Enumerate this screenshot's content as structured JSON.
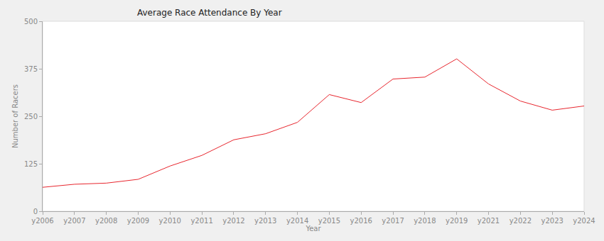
{
  "chart_data": {
    "type": "line",
    "title": "Average Race Attendance By Year",
    "x_label": "Year",
    "y_label": "Number of Racers",
    "categories": [
      "y2006",
      "y2007",
      "y2008",
      "y2009",
      "y2010",
      "y2011",
      "y2012",
      "y2013",
      "y2014",
      "y2015",
      "y2016",
      "y2017",
      "y2018",
      "y2019",
      "y2021",
      "y2022",
      "y2023",
      "y2024"
    ],
    "values": [
      63,
      71,
      74,
      84,
      119,
      147,
      188,
      204,
      234,
      307,
      286,
      348,
      353,
      401,
      335,
      290,
      266,
      277
    ],
    "color": "#e8262e",
    "ylim": [
      0,
      500
    ],
    "yticks": [
      0,
      125,
      250,
      375,
      500
    ],
    "grid": false
  }
}
